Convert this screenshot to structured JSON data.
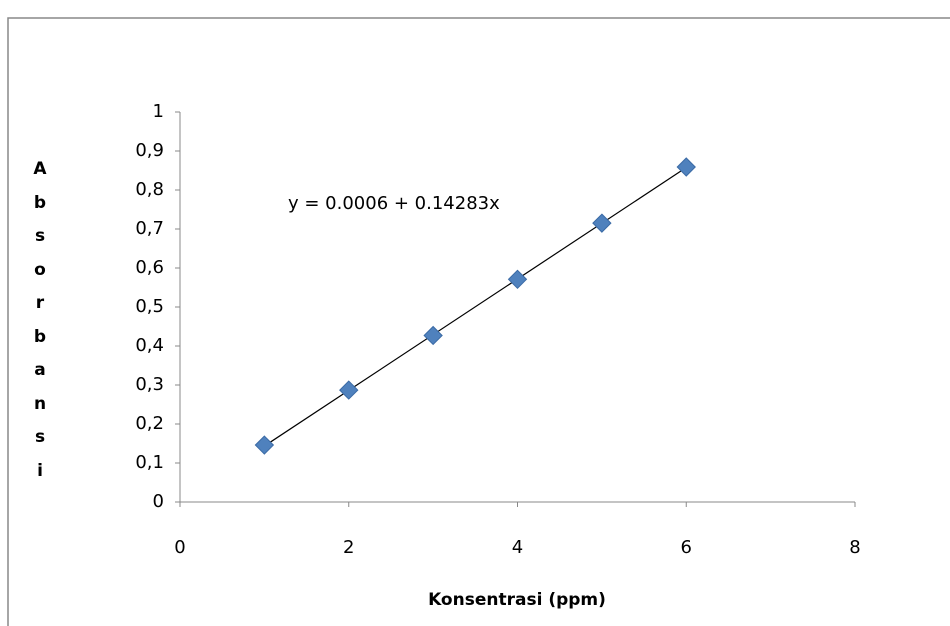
{
  "chart_data": {
    "type": "scatter",
    "x_label": "Konsentrasi (ppm)",
    "y_label": "Absorbansi",
    "x": [
      1,
      2,
      3,
      4,
      5,
      6
    ],
    "values": [
      0.146,
      0.287,
      0.427,
      0.571,
      0.715,
      0.859
    ],
    "color": "#4f81bd",
    "xlim": [
      0,
      8
    ],
    "xticks": [
      0,
      2,
      4,
      6,
      8
    ],
    "ylim": [
      0,
      1
    ],
    "yticks": [
      0,
      {
        "value": 0.1,
        "label": "0,1"
      },
      {
        "value": 0.2,
        "label": "0,2"
      },
      {
        "value": 0.3,
        "label": "0,3"
      },
      {
        "value": 0.4,
        "label": "0,4"
      },
      {
        "value": 0.5,
        "label": "0,5"
      },
      {
        "value": 0.6,
        "label": "0,6"
      },
      {
        "value": 0.7,
        "label": "0,7"
      },
      {
        "value": 0.8,
        "label": "0,8"
      },
      {
        "value": 0.9,
        "label": "0,9"
      },
      1
    ],
    "trendline": {
      "label": "y = 0.0006 + 0.14283x",
      "intercept": 0.0006,
      "slope": 0.14283
    }
  }
}
